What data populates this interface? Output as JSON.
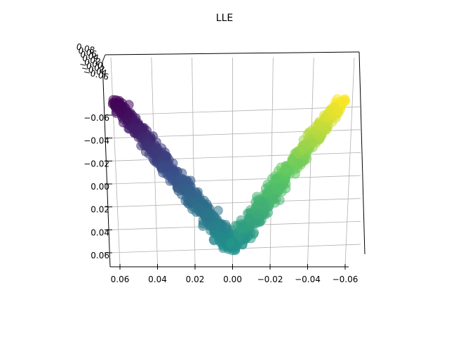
{
  "chart_data": {
    "type": "scatter",
    "projection": "3d",
    "title": "LLE",
    "colormap": "viridis",
    "marker_alpha": 0.55,
    "colormap_stops": [
      "#440154",
      "#3b528b",
      "#21918c",
      "#5ec962",
      "#fde725"
    ],
    "x_ticks": [
      "0.06",
      "0.04",
      "0.02",
      "0.00",
      "−0.02",
      "−0.04",
      "−0.06"
    ],
    "y_ticks": [
      "−0.06",
      "−0.04",
      "−0.02",
      "0.00",
      "0.02",
      "0.04",
      "0.06"
    ],
    "z_ticks": [
      "0.08",
      "0.06",
      "0.04",
      "0.02",
      "0.00",
      "−0.02",
      "−0.04",
      "−0.06"
    ],
    "grid": true,
    "view": "elevated, looking down on the x-y plane",
    "point_count": 1000,
    "manifold": {
      "shape": "V",
      "arms": [
        {
          "x_range": [
            0.06,
            0.0
          ],
          "y_range": [
            -0.07,
            0.05
          ],
          "color_range": [
            0.0,
            0.5
          ]
        },
        {
          "x_range": [
            0.0,
            -0.055
          ],
          "y_range": [
            0.05,
            -0.07
          ],
          "color_range": [
            0.5,
            1.0
          ]
        }
      ]
    }
  }
}
